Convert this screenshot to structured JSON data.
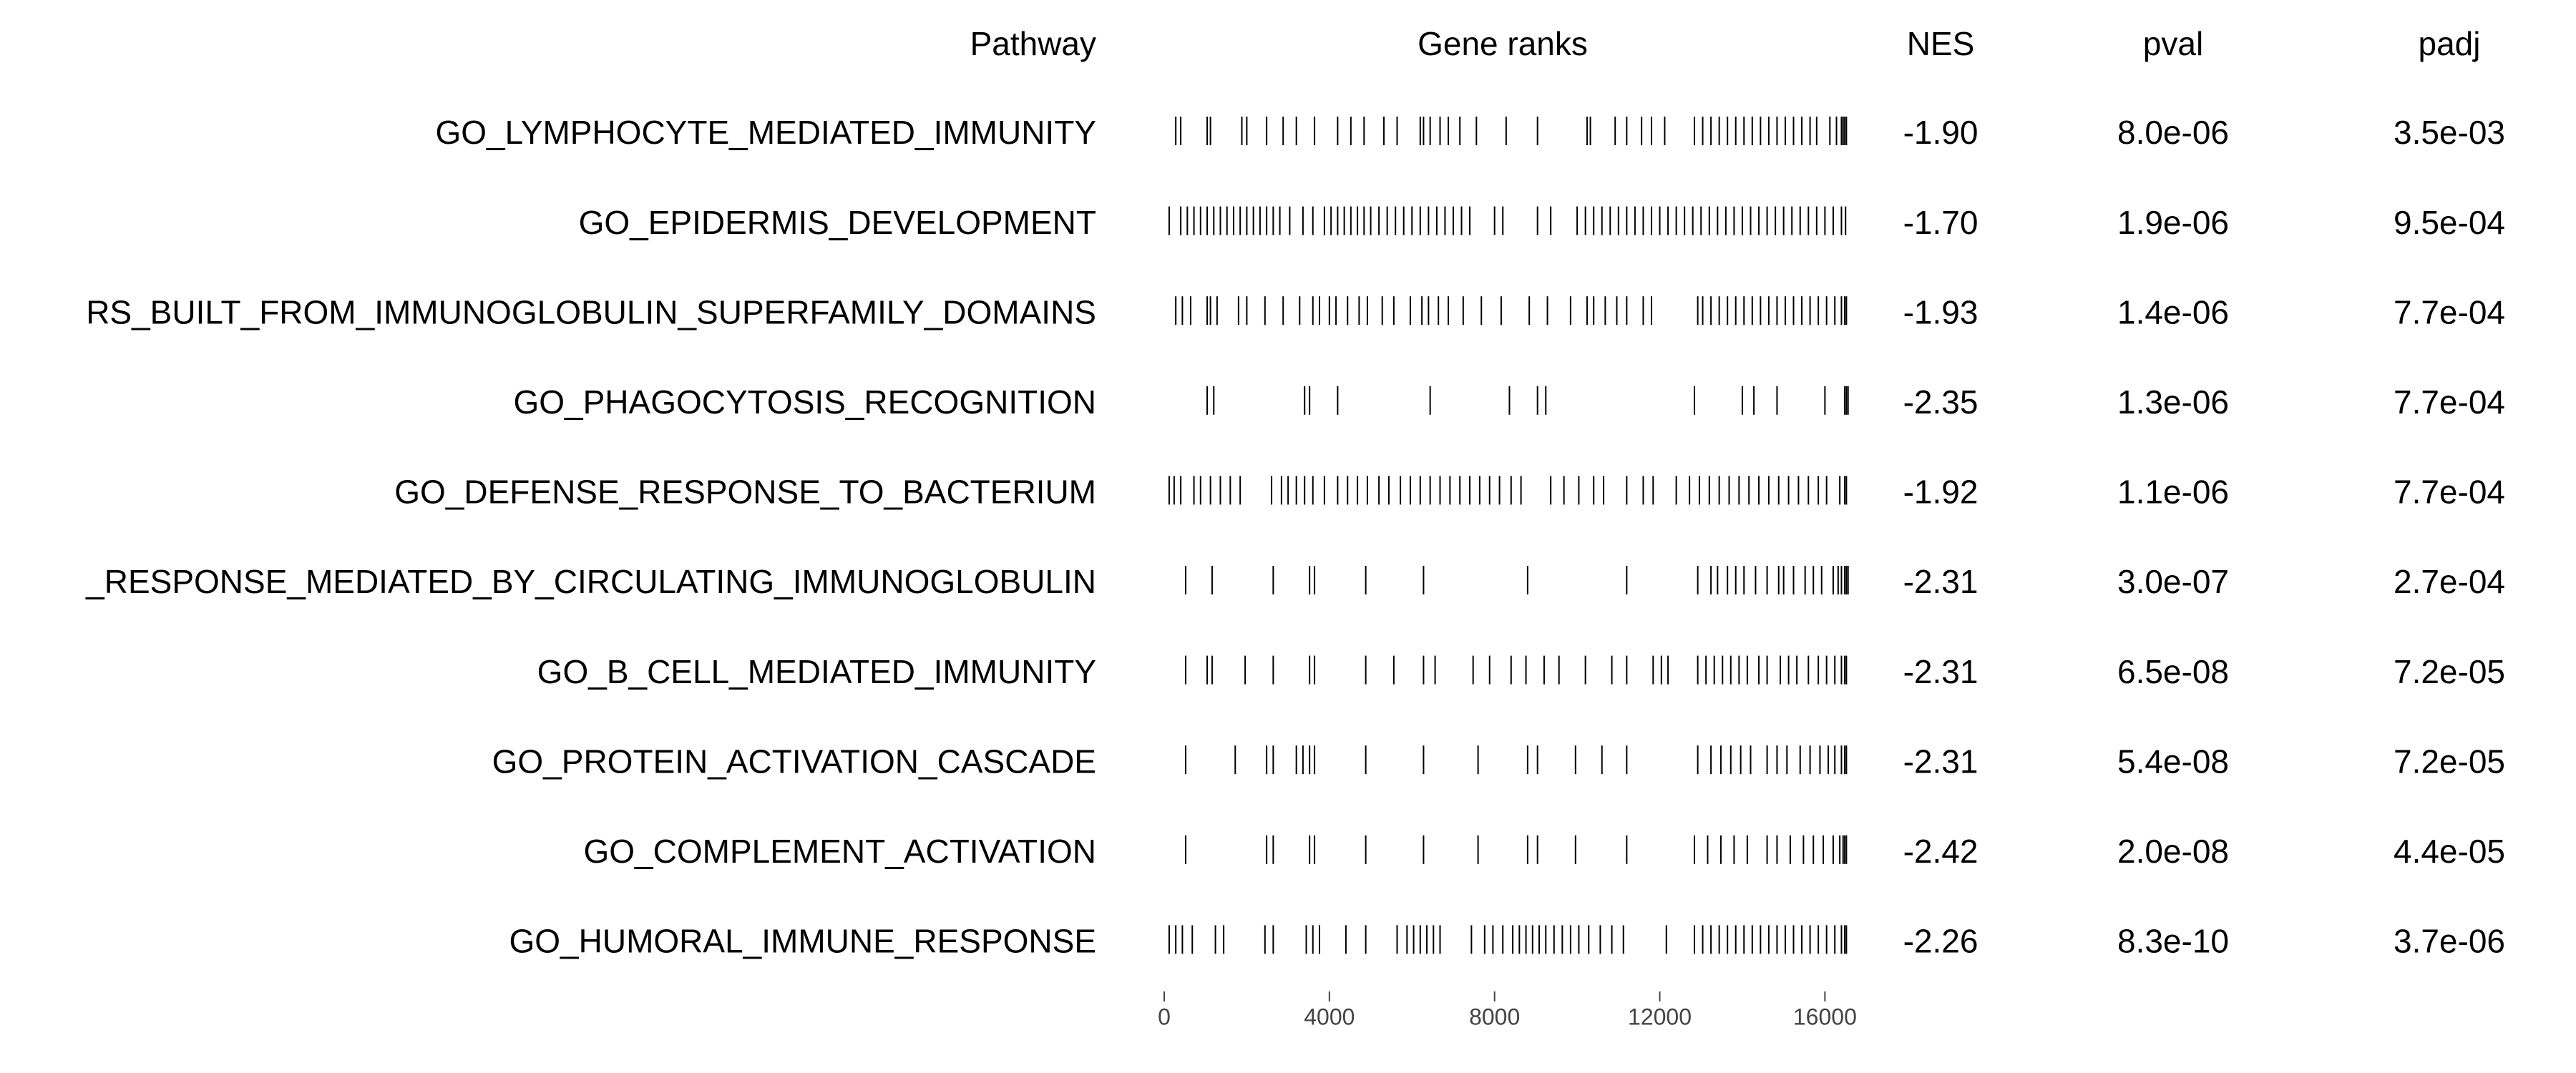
{
  "chart_data": {
    "type": "gsea_table",
    "headers": {
      "pathway": "Pathway",
      "gene_ranks": "Gene ranks",
      "nes": "NES",
      "pval": "pval",
      "padj": "padj"
    },
    "xlim": [
      0,
      16600
    ],
    "xticks": [
      0,
      4000,
      8000,
      12000,
      16000
    ],
    "rows": [
      {
        "pathway": "GO_LYMPHOCYTE_MEDIATED_IMMUNITY",
        "nes": "-1.90",
        "pval": "8.0e-06",
        "padj": "3.5e-03",
        "ranks": [
          280,
          400,
          1040,
          1120,
          1880,
          2000,
          2480,
          2880,
          3200,
          3640,
          4200,
          4520,
          4840,
          5320,
          5640,
          6200,
          6280,
          6440,
          6680,
          6880,
          7160,
          7560,
          8280,
          9040,
          10240,
          10320,
          10920,
          11200,
          11560,
          11800,
          12120,
          12840,
          13040,
          13240,
          13440,
          13640,
          13840,
          14040,
          14240,
          14440,
          14640,
          14840,
          15040,
          15240,
          15440,
          15640,
          15800,
          16120,
          16280,
          16400,
          16440,
          16480,
          16520
        ]
      },
      {
        "pathway": "GO_EPIDERMIS_DEVELOPMENT",
        "nes": "-1.70",
        "pval": "1.9e-06",
        "padj": "9.5e-04",
        "ranks": [
          120,
          400,
          560,
          720,
          880,
          1040,
          1200,
          1360,
          1520,
          1680,
          1840,
          2000,
          2160,
          2320,
          2480,
          2640,
          2800,
          3040,
          3360,
          3600,
          3880,
          4040,
          4200,
          4360,
          4520,
          4680,
          4840,
          5000,
          5200,
          5400,
          5600,
          5800,
          6000,
          6200,
          6400,
          6600,
          6800,
          7000,
          7200,
          7400,
          8000,
          8200,
          9040,
          9360,
          10000,
          10200,
          10400,
          10600,
          10800,
          11000,
          11200,
          11400,
          11600,
          11800,
          12000,
          12200,
          12400,
          12600,
          12800,
          13000,
          13200,
          13400,
          13600,
          13800,
          14000,
          14200,
          14400,
          14600,
          14800,
          15000,
          15200,
          15400,
          15600,
          15800,
          16000,
          16200,
          16400,
          16500
        ]
      },
      {
        "pathway": "RS_BUILT_FROM_IMMUNOGLOBULIN_SUPERFAMILY_DOMAINS",
        "nes": "-1.93",
        "pval": "1.4e-06",
        "padj": "7.7e-04",
        "ranks": [
          280,
          440,
          640,
          1040,
          1120,
          1280,
          1800,
          2000,
          2440,
          2880,
          3280,
          3600,
          3760,
          4000,
          4160,
          4440,
          4720,
          4920,
          5280,
          5560,
          5960,
          6240,
          6400,
          6640,
          6880,
          7240,
          7680,
          8160,
          8840,
          9280,
          9840,
          10240,
          10400,
          10680,
          10960,
          11200,
          11600,
          11800,
          12920,
          13040,
          13240,
          13440,
          13640,
          13840,
          14040,
          14240,
          14440,
          14640,
          14840,
          15040,
          15240,
          15440,
          15640,
          15840,
          16040,
          16240,
          16400,
          16480,
          16520
        ]
      },
      {
        "pathway": "GO_PHAGOCYTOSIS_RECOGNITION",
        "nes": "-2.35",
        "pval": "1.3e-06",
        "padj": "7.7e-04",
        "ranks": [
          1040,
          1200,
          3400,
          3520,
          4200,
          6440,
          8360,
          9040,
          9240,
          12840,
          14000,
          14280,
          14840,
          16000,
          16480,
          16520,
          16560
        ]
      },
      {
        "pathway": "GO_DEFENSE_RESPONSE_TO_BACTERIUM",
        "nes": "-1.92",
        "pval": "1.1e-06",
        "padj": "7.7e-04",
        "ranks": [
          120,
          240,
          400,
          720,
          880,
          1120,
          1360,
          1600,
          1840,
          2600,
          2840,
          3000,
          3200,
          3400,
          3600,
          3880,
          4200,
          4440,
          4680,
          4920,
          5200,
          5440,
          5720,
          5960,
          6200,
          6440,
          6680,
          6920,
          7160,
          7400,
          7640,
          7880,
          8120,
          8400,
          8640,
          9360,
          9680,
          10040,
          10400,
          10640,
          11200,
          11600,
          11840,
          12400,
          12720,
          12960,
          13200,
          13440,
          13680,
          13920,
          14160,
          14400,
          14640,
          14880,
          15120,
          15360,
          15600,
          15840,
          16040,
          16360,
          16480,
          16520
        ]
      },
      {
        "pathway": "_RESPONSE_MEDIATED_BY_CIRCULATING_IMMUNOGLOBULIN",
        "nes": "-2.31",
        "pval": "3.0e-07",
        "padj": "2.7e-04",
        "ranks": [
          520,
          1160,
          2640,
          3520,
          3640,
          4880,
          6280,
          8800,
          11200,
          12920,
          13240,
          13400,
          13640,
          13840,
          14040,
          14320,
          14600,
          14880,
          15000,
          15240,
          15520,
          15720,
          15920,
          16200,
          16320,
          16400,
          16480,
          16520,
          16560
        ]
      },
      {
        "pathway": "GO_B_CELL_MEDIATED_IMMUNITY",
        "nes": "-2.31",
        "pval": "6.5e-08",
        "padj": "7.2e-05",
        "ranks": [
          520,
          1040,
          1160,
          1960,
          2640,
          3520,
          3640,
          4880,
          5560,
          6280,
          6560,
          7480,
          7880,
          8400,
          8760,
          9200,
          9560,
          10200,
          10840,
          11200,
          11840,
          12040,
          12200,
          12920,
          13120,
          13320,
          13520,
          13720,
          13920,
          14120,
          14400,
          14600,
          14920,
          15120,
          15320,
          15600,
          15840,
          16040,
          16240,
          16400,
          16480,
          16520
        ]
      },
      {
        "pathway": "GO_PROTEIN_ACTIVATION_CASCADE",
        "nes": "-2.31",
        "pval": "5.4e-08",
        "padj": "7.2e-05",
        "ranks": [
          520,
          1720,
          2480,
          2640,
          3200,
          3360,
          3520,
          3640,
          4880,
          6280,
          7600,
          8800,
          9040,
          9960,
          10600,
          11200,
          12920,
          13240,
          13480,
          13720,
          13960,
          14200,
          14600,
          14840,
          15080,
          15400,
          15640,
          15880,
          16080,
          16240,
          16400,
          16480,
          16520
        ]
      },
      {
        "pathway": "GO_COMPLEMENT_ACTIVATION",
        "nes": "-2.42",
        "pval": "2.0e-08",
        "padj": "4.4e-05",
        "ranks": [
          520,
          2480,
          2640,
          3520,
          3640,
          4880,
          6280,
          7600,
          8800,
          9040,
          9960,
          11200,
          12840,
          13160,
          13480,
          13800,
          14120,
          14600,
          14840,
          15160,
          15480,
          15720,
          15960,
          16200,
          16360,
          16440,
          16480,
          16520
        ]
      },
      {
        "pathway": "GO_HUMORAL_IMMUNE_RESPONSE",
        "nes": "-2.26",
        "pval": "8.3e-10",
        "padj": "3.7e-06",
        "ranks": [
          120,
          280,
          440,
          680,
          1240,
          1440,
          2440,
          2640,
          3440,
          3600,
          3760,
          4400,
          4880,
          5640,
          5880,
          6040,
          6200,
          6360,
          6520,
          6680,
          7440,
          7760,
          7960,
          8200,
          8440,
          8600,
          8760,
          8920,
          9080,
          9240,
          9440,
          9640,
          9840,
          10040,
          10280,
          10560,
          10840,
          11120,
          12160,
          12840,
          13040,
          13240,
          13440,
          13640,
          13840,
          14040,
          14240,
          14440,
          14640,
          14840,
          15040,
          15240,
          15440,
          15640,
          15840,
          16040,
          16240,
          16400,
          16480,
          16520
        ]
      }
    ]
  }
}
